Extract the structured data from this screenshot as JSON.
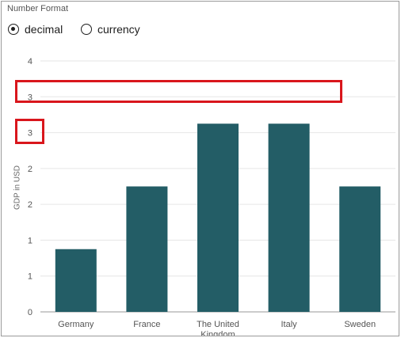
{
  "panel": {
    "section_label": "Number Format",
    "radios": [
      {
        "label": "decimal",
        "checked": true
      },
      {
        "label": "currency",
        "checked": false
      }
    ]
  },
  "colors": {
    "bar": "#235d66",
    "grid": "#e6e6e6",
    "axis": "#9a9a9a",
    "callout": "#d9161c"
  },
  "chart_data": {
    "type": "bar",
    "categories": [
      "Germany",
      "France",
      "The United Kingdom",
      "Italy",
      "Sweden"
    ],
    "values": [
      1,
      2,
      3,
      3,
      2
    ],
    "ylabel": "GDP in USD",
    "xlabel": "",
    "ylim": [
      0,
      4
    ],
    "tick_labels": [
      "0",
      "1",
      "1",
      "2",
      "2",
      "3",
      "3",
      "4"
    ],
    "grid": true
  }
}
